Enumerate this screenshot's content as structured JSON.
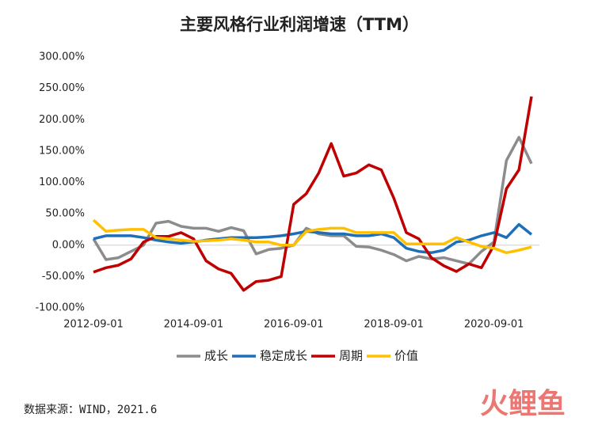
{
  "chart_data": {
    "type": "line",
    "title": "主要风格行业利润增速（TTM）",
    "categories": [
      "2012-09-01",
      null,
      null,
      null,
      null,
      null,
      null,
      null,
      "2014-09-01",
      null,
      null,
      null,
      null,
      null,
      null,
      null,
      "2016-09-01",
      null,
      null,
      null,
      null,
      null,
      null,
      null,
      "2018-09-01",
      null,
      null,
      null,
      null,
      null,
      null,
      null,
      "2020-09-01",
      null,
      null,
      null
    ],
    "series": [
      {
        "name": "成长",
        "color": "#8c8c8c",
        "values": [
          10,
          -23,
          -20,
          -10,
          0,
          35,
          38,
          30,
          27,
          27,
          22,
          28,
          23,
          -14,
          -7,
          -5,
          0,
          27,
          18,
          15,
          15,
          -2,
          -3,
          -8,
          -15,
          -25,
          -18,
          -22,
          -20,
          -25,
          -30,
          -10,
          5,
          135,
          172,
          130
        ]
      },
      {
        "name": "稳定成长",
        "color": "#1f6fb8",
        "values": [
          10,
          15,
          15,
          15,
          12,
          8,
          5,
          3,
          5,
          8,
          10,
          12,
          12,
          12,
          13,
          15,
          18,
          22,
          20,
          18,
          18,
          15,
          15,
          18,
          12,
          -5,
          -10,
          -12,
          -8,
          5,
          8,
          15,
          20,
          12,
          33,
          17
        ]
      },
      {
        "name": "周期",
        "color": "#c00000",
        "values": [
          -43,
          -36,
          -32,
          -22,
          5,
          14,
          14,
          20,
          10,
          -25,
          -38,
          -45,
          -72,
          -58,
          -56,
          -50,
          65,
          82,
          115,
          162,
          110,
          115,
          128,
          120,
          75,
          20,
          10,
          -20,
          -33,
          -42,
          -30,
          -36,
          0,
          90,
          120,
          237
        ]
      },
      {
        "name": "价值",
        "color": "#ffc000",
        "values": [
          40,
          22,
          24,
          25,
          25,
          12,
          10,
          8,
          6,
          7,
          8,
          10,
          8,
          5,
          5,
          0,
          0,
          22,
          25,
          27,
          27,
          20,
          20,
          20,
          20,
          2,
          2,
          2,
          2,
          12,
          5,
          -2,
          -5,
          -12,
          -8,
          -3
        ]
      }
    ],
    "ylim": [
      -100,
      300
    ],
    "yticks": [
      {
        "value": -100,
        "label": "-100.00%"
      },
      {
        "value": -50,
        "label": "-50.00%"
      },
      {
        "value": 0,
        "label": "0.00%"
      },
      {
        "value": 50,
        "label": "50.00%"
      },
      {
        "value": 100,
        "label": "100.00%"
      },
      {
        "value": 150,
        "label": "150.00%"
      },
      {
        "value": 200,
        "label": "200.00%"
      },
      {
        "value": 250,
        "label": "250.00%"
      },
      {
        "value": 300,
        "label": "300.00%"
      }
    ],
    "legend": "bottom",
    "source": "数据来源：WIND，2021.6",
    "watermark": "火鲤鱼"
  }
}
